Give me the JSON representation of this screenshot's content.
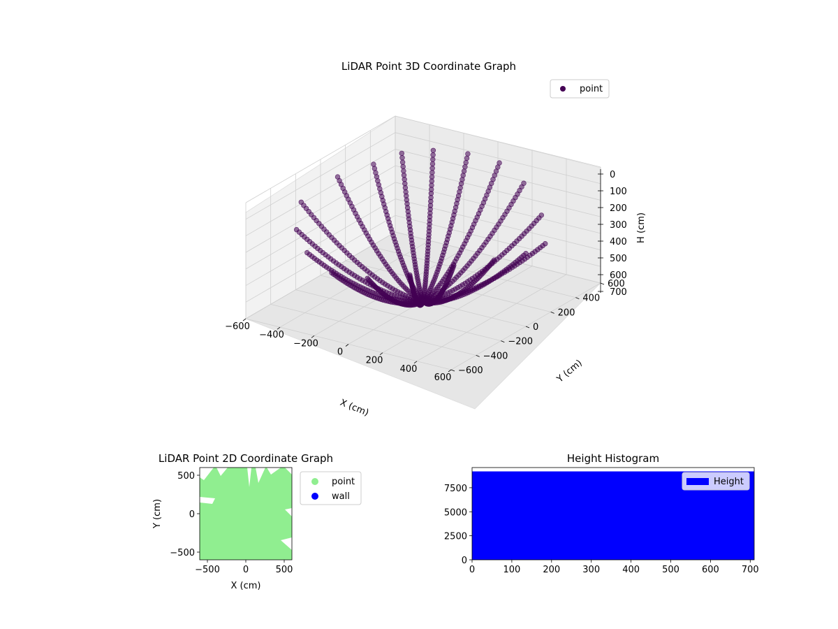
{
  "chart_data": [
    {
      "type": "scatter",
      "projection": "3d",
      "title": "LiDAR Point 3D Coordinate Graph",
      "xlabel": "X (cm)",
      "ylabel": "Y (cm)",
      "zlabel": "H (cm)",
      "xlim": [
        -600,
        600
      ],
      "ylim": [
        -600,
        600
      ],
      "zlim": [
        0,
        700
      ],
      "zinverted": true,
      "x_ticks": [
        -600,
        -400,
        -200,
        0,
        200,
        400,
        600
      ],
      "y_ticks": [
        -600,
        -400,
        -200,
        0,
        200,
        400,
        600
      ],
      "z_ticks": [
        0,
        100,
        200,
        300,
        400,
        500,
        600,
        700
      ],
      "grid": true,
      "legend": {
        "position": "top-right",
        "entries": [
          {
            "label": "point",
            "color": "#440154"
          }
        ]
      },
      "marker_color": "#440154",
      "series": [
        {
          "name": "point",
          "description_pattern": "radial arcs of points from origin (0,0,0) out to ±600 cm horizontally, rising to ~0-700 cm height",
          "arcs": [
            {
              "angle_deg": 0,
              "r_max": 600,
              "h_top": 260
            },
            {
              "angle_deg": 20,
              "r_max": 600,
              "h_top": 300
            },
            {
              "angle_deg": 40,
              "r_max": 560,
              "h_top": 230
            },
            {
              "angle_deg": 60,
              "r_max": 520,
              "h_top": 120
            },
            {
              "angle_deg": 80,
              "r_max": 500,
              "h_top": 60
            },
            {
              "angle_deg": 100,
              "r_max": 480,
              "h_top": 40
            },
            {
              "angle_deg": 120,
              "r_max": 450,
              "h_top": 20
            },
            {
              "angle_deg": 140,
              "r_max": 420,
              "h_top": 10
            },
            {
              "angle_deg": 160,
              "r_max": 420,
              "h_top": 40
            },
            {
              "angle_deg": 180,
              "r_max": 500,
              "h_top": 80
            },
            {
              "angle_deg": 200,
              "r_max": 600,
              "h_top": 160
            },
            {
              "angle_deg": 220,
              "r_max": 600,
              "h_top": 220
            },
            {
              "angle_deg": 240,
              "r_max": 600,
              "h_top": 260
            },
            {
              "angle_deg": 260,
              "r_max": 600,
              "h_top": 300
            },
            {
              "angle_deg": 280,
              "r_max": 600,
              "h_top": 280
            },
            {
              "angle_deg": 300,
              "r_max": 600,
              "h_top": 240
            },
            {
              "angle_deg": 320,
              "r_max": 600,
              "h_top": 200
            },
            {
              "angle_deg": 340,
              "r_max": 600,
              "h_top": 220
            }
          ]
        }
      ]
    },
    {
      "type": "scatter",
      "title": "LiDAR Point 2D Coordinate Graph",
      "xlabel": "X (cm)",
      "ylabel": "Y (cm)",
      "xlim": [
        -600,
        600
      ],
      "ylim": [
        -600,
        600
      ],
      "x_ticks": [
        -500,
        0,
        500
      ],
      "y_ticks": [
        -500,
        0,
        500
      ],
      "legend": {
        "position": "outside-right",
        "entries": [
          {
            "label": "point",
            "color": "#90ee90"
          },
          {
            "label": "wall",
            "color": "#0000ff"
          }
        ]
      },
      "series": [
        {
          "name": "point",
          "color": "#90ee90",
          "fill": "dense coverage of nearly whole plot area"
        },
        {
          "name": "wall",
          "color": "#0000ff",
          "values": []
        }
      ]
    },
    {
      "type": "bar",
      "title": "Height Histogram",
      "xlabel": "",
      "ylabel": "",
      "xlim": [
        0,
        710
      ],
      "ylim": [
        0,
        9600
      ],
      "x_ticks": [
        0,
        100,
        200,
        300,
        400,
        500,
        600,
        700
      ],
      "y_ticks": [
        0,
        2500,
        5000,
        7500
      ],
      "legend": {
        "position": "top-right",
        "entries": [
          {
            "label": "Height",
            "color": "#0000ff"
          }
        ]
      },
      "series": [
        {
          "name": "Height",
          "color": "#0000ff",
          "bins": [
            0,
            710
          ],
          "values": [
            9200
          ]
        }
      ]
    }
  ]
}
